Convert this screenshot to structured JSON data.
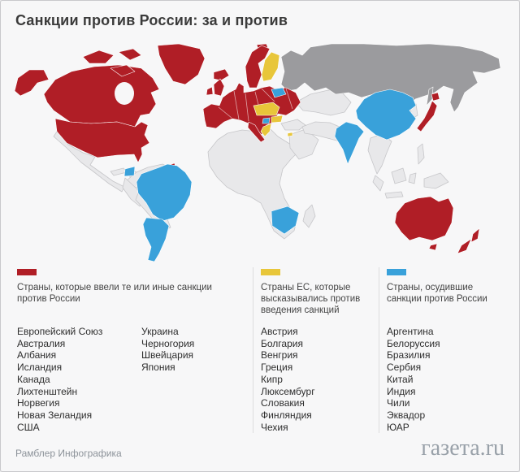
{
  "title": "Санкции против России: за и против",
  "colors": {
    "sanctions": "#b01e26",
    "eu_against": "#e8c63a",
    "condemned": "#39a1da",
    "russia": "#9b9b9e",
    "neutral": "#e8e8ea",
    "ocean": "#f7f7f8"
  },
  "legend": [
    {
      "label": "Страны, которые ввели те или иные санкции против России",
      "category": "sanctions"
    },
    {
      "label": "Страны ЕС, которые высказывались против введения санкций",
      "category": "eu_against"
    },
    {
      "label": "Страны, осудившие санкции против России",
      "category": "condemned"
    }
  ],
  "lists": {
    "sanctions_col1": [
      "Европейский Союз",
      "Австралия",
      "Албания",
      "Исландия",
      "Канада",
      "Лихтенштейн",
      "Норвегия",
      "Новая Зеландия",
      "США"
    ],
    "sanctions_col2": [
      "Украина",
      "Черногория",
      "Швейцария",
      "Япония"
    ],
    "eu_against": [
      "Австрия",
      "Болгария",
      "Венгрия",
      "Греция",
      "Кипр",
      "Люксембург",
      "Словакия",
      "Финляндия",
      "Чехия"
    ],
    "condemned": [
      "Аргентина",
      "Белоруссия",
      "Бразилия",
      "Сербия",
      "Китай",
      "Индия",
      "Чили",
      "Эквадор",
      "ЮАР"
    ]
  },
  "footer": {
    "source": "Рамблер Инфографика",
    "brand": "газета.ru"
  }
}
